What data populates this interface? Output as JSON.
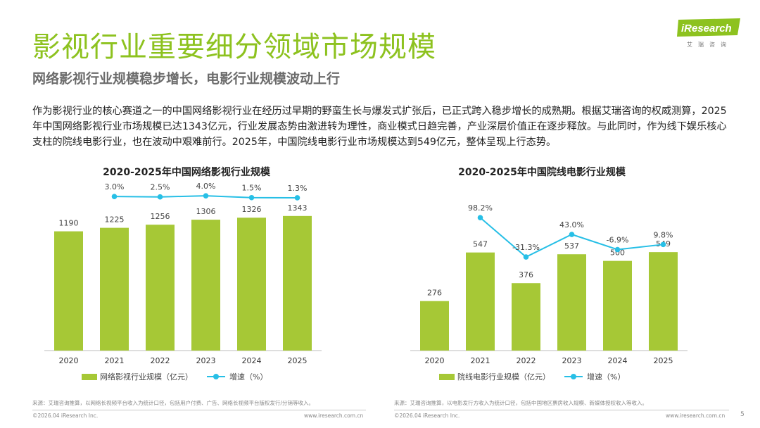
{
  "header": {
    "title": "影视行业重要细分领域市场规模",
    "subtitle": "网络影视行业规模稳步增长，电影行业规模波动上行"
  },
  "logo": {
    "text": "iResearch",
    "sub": "艾瑞咨询"
  },
  "body_text": "作为影视行业的核心赛道之一的中国网络影视行业在经历过早期的野蛮生长与爆发式扩张后，已正式跨入稳步增长的成熟期。根据艾瑞咨询的权威测算，2025年中国网络影视行业市场规模已达1343亿元，行业发展态势由激进转为理性，商业模式日趋完善，产业深层价值正在逐步释放。与此同时，作为线下娱乐核心支柱的院线电影行业，也在波动中艰难前行。2025年，中国院线电影行业市场规模达到549亿元，整体呈现上行态势。",
  "colors": {
    "accent": "#8dc21f",
    "bar": "#a6c836",
    "line": "#27bfe6"
  },
  "chart_data": [
    {
      "type": "bar",
      "title": "2020-2025年中国网络影视行业规模",
      "categories": [
        "2020",
        "2021",
        "2022",
        "2023",
        "2024",
        "2025"
      ],
      "series": [
        {
          "name": "网络影视行业规模（亿元）",
          "type": "bar",
          "values": [
            1190,
            1225,
            1256,
            1306,
            1326,
            1343
          ]
        },
        {
          "name": "增速（%）",
          "type": "line",
          "values": [
            null,
            3.0,
            2.5,
            4.0,
            1.5,
            1.3
          ]
        }
      ],
      "bar_labels": [
        "1190",
        "1225",
        "1256",
        "1306",
        "1326",
        "1343"
      ],
      "line_labels": [
        "",
        "3.0%",
        "2.5%",
        "4.0%",
        "1.5%",
        "1.3%"
      ],
      "ylim": [
        0,
        1700
      ],
      "line_range": [
        -100,
        8
      ],
      "source": "来源：艾瑞咨询推算，以网络长视频平台收入为统计口径，包括用户付费、广告、网络长视频平台版权发行/分销等收入。",
      "footer_left": "©2026.04 iResearch Inc.",
      "footer_right": "www.iresearch.com.cn"
    },
    {
      "type": "bar",
      "title": "2020-2025年中国院线电影行业规模",
      "categories": [
        "2020",
        "2021",
        "2022",
        "2023",
        "2024",
        "2025"
      ],
      "series": [
        {
          "name": "院线电影行业规模（亿元）",
          "type": "bar",
          "values": [
            276,
            547,
            376,
            537,
            500,
            549
          ]
        },
        {
          "name": "增速（%）",
          "type": "line",
          "values": [
            null,
            98.2,
            -31.3,
            43.0,
            -6.9,
            9.8
          ]
        }
      ],
      "bar_labels": [
        "276",
        "547",
        "376",
        "537",
        "500",
        "549"
      ],
      "line_labels": [
        "",
        "98.2%",
        "-31.3%",
        "43.0%",
        "-6.9%",
        "9.8%"
      ],
      "ylim": [
        0,
        950
      ],
      "line_range": [
        -80,
        180
      ],
      "source": "来源：艾瑞咨询推算，以电影发行方收入为统计口径，包括中国地区票房收入规模、新媒体授权收入等收入。",
      "footer_left": "©2026.04 iResearch Inc.",
      "footer_right": "www.iresearch.com.cn"
    }
  ],
  "page_number": "5"
}
